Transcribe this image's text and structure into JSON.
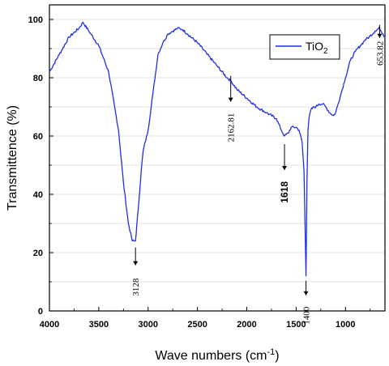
{
  "chart_data": {
    "type": "line",
    "xlabel": "Wave numbers (cm",
    "xlabel_sup": "-1",
    "xlabel_end": ")",
    "ylabel": "Transmittence (%)",
    "xlim": [
      4000,
      600
    ],
    "ylim": [
      0,
      105
    ],
    "x_ticks": [
      "4000",
      "3500",
      "3000",
      "2500",
      "2000",
      "1500",
      "1000"
    ],
    "y_ticks": [
      "0",
      "20",
      "40",
      "60",
      "80",
      "100"
    ],
    "grid": true,
    "legend_position": "top-right",
    "series": [
      {
        "name": "TiO",
        "name_sub": "2",
        "color": "#1f2fe8",
        "x": [
          4000,
          3900,
          3800,
          3700,
          3660,
          3600,
          3500,
          3400,
          3300,
          3250,
          3200,
          3160,
          3128,
          3100,
          3070,
          3050,
          3000,
          2950,
          2900,
          2850,
          2800,
          2750,
          2700,
          2650,
          2600,
          2500,
          2400,
          2300,
          2200,
          2162.81,
          2100,
          2000,
          1900,
          1800,
          1700,
          1650,
          1618,
          1580,
          1550,
          1500,
          1470,
          1440,
          1420,
          1410,
          1400,
          1390,
          1380,
          1370,
          1350,
          1320,
          1300,
          1270,
          1230,
          1200,
          1160,
          1120,
          1100,
          1050,
          1000,
          950,
          900,
          850,
          800,
          760,
          700,
          653.82,
          620,
          600
        ],
        "values": [
          82,
          88,
          94,
          97,
          99,
          96,
          91,
          82,
          62,
          44,
          30,
          24,
          24,
          35,
          48,
          55,
          62,
          75,
          88,
          92,
          95,
          96,
          97,
          96.5,
          95,
          92,
          88,
          84,
          80,
          79,
          76,
          73,
          70,
          68,
          66,
          62,
          60,
          61,
          63,
          63,
          62,
          58,
          48,
          30,
          12,
          45,
          62,
          66,
          69,
          70,
          70,
          71,
          71,
          70,
          68,
          67,
          68,
          74,
          80,
          86,
          89,
          91,
          93,
          94,
          96,
          97,
          95,
          94
        ]
      }
    ],
    "annotations": [
      {
        "text": "3128",
        "x": 3128,
        "y": 24,
        "style": "serif",
        "rotation": -90
      },
      {
        "text": "2162.81",
        "x": 2162.81,
        "y": 79,
        "style": "serif",
        "rotation": -90
      },
      {
        "text": "1618",
        "x": 1618,
        "y": 60,
        "style": "bold",
        "rotation": -90
      },
      {
        "text": "1400",
        "x": 1400,
        "y": 12,
        "style": "serif",
        "rotation": -90
      },
      {
        "text": "653.82",
        "x": 653.82,
        "y": 97,
        "style": "serif",
        "rotation": -90
      }
    ]
  }
}
